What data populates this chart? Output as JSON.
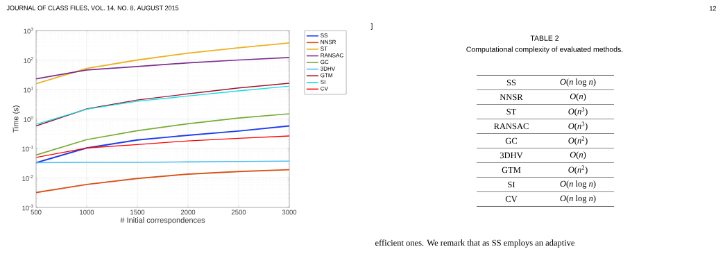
{
  "chart_data": [
    {
      "type": "line",
      "xlabel": "# Initial correspondences",
      "ylabel": "Time (s)",
      "x": [
        500,
        1000,
        1500,
        2000,
        2500,
        3000
      ],
      "xlim": [
        500,
        3000
      ],
      "xticks": [
        500,
        1000,
        1500,
        2000,
        2500,
        3000
      ],
      "ylim": [
        0.001,
        1000
      ],
      "log": "y",
      "yticks": [
        {
          "value": 0.001,
          "label": "10$^{-3}$"
        },
        {
          "value": 0.01,
          "label": "10$^{-2}$"
        },
        {
          "value": 0.1,
          "label": "10$^{-1}$"
        },
        {
          "value": 1,
          "label": "10$^{0}$"
        },
        {
          "value": 10,
          "label": "10$^{1}$"
        },
        {
          "value": 100,
          "label": "10$^{2}$"
        },
        {
          "value": 1000,
          "label": "10$^{3}$"
        }
      ],
      "grid": true,
      "legend": "right",
      "series": [
        {
          "name": "SS",
          "color": "#1a3cf0",
          "values": [
            0.033,
            0.104,
            0.195,
            0.28,
            0.39,
            0.58
          ]
        },
        {
          "name": "NNSR",
          "color": "#d95319",
          "values": [
            0.0032,
            0.006,
            0.0096,
            0.0135,
            0.0165,
            0.019
          ]
        },
        {
          "name": "ST",
          "color": "#edb120",
          "values": [
            15.7,
            52,
            100,
            170,
            260,
            380
          ]
        },
        {
          "name": "RANSAC",
          "color": "#7e2f8e",
          "values": [
            23,
            46,
            60,
            80,
            100,
            122
          ]
        },
        {
          "name": "GC",
          "color": "#77ac30",
          "values": [
            0.06,
            0.2,
            0.4,
            0.69,
            1.08,
            1.5
          ]
        },
        {
          "name": "3DHV",
          "color": "#4dbeee",
          "values": [
            0.033,
            0.034,
            0.034,
            0.035,
            0.036,
            0.037
          ]
        },
        {
          "name": "GTM",
          "color": "#a2142f",
          "values": [
            0.58,
            2.2,
            4.4,
            7.1,
            11.3,
            16.3
          ]
        },
        {
          "name": "SI",
          "color": "#10e0e8",
          "values": [
            0.66,
            2.15,
            4.0,
            6.0,
            9.0,
            13
          ]
        },
        {
          "name": "CV",
          "color": "#ff0000",
          "values": [
            0.05,
            0.104,
            0.136,
            0.18,
            0.22,
            0.265
          ]
        }
      ]
    },
    {
      "type": "other",
      "title": "TABLE 2",
      "subtitle": "Computational complexity of evaluated methods.",
      "categories": [
        "SS",
        "NNSR",
        "ST",
        "RANSAC",
        "GC",
        "3DHV",
        "GTM",
        "SI",
        "CV"
      ],
      "annotations": [
        "JOURNAL OF CLASS FILES, VOL. 14, NO. 8, AUGUST 2015",
        "12",
        "]",
        "efficient ones. We remark that as SS employs an adaptive",
        "*O*(*n* log *n*)",
        "*O*(*n*)",
        "*O*(*n*$^{3}$)",
        "*O*(*n*$^{3}$)",
        "*O*(*n*$^{2}$)",
        "*O*(*n*)",
        "*O*(*n*$^{2}$)",
        "*O*(*n* log *n*)",
        "*O*(*n* log *n*)"
      ]
    }
  ]
}
